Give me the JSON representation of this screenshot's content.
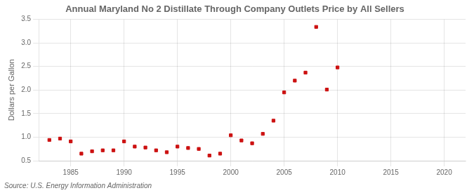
{
  "chart_data": {
    "type": "scatter",
    "title": "Annual Maryland No 2 Distillate Through Company Outlets Price by All Sellers",
    "ylabel": "Dollars per Gallon",
    "source": "Source: U.S. Energy Information Administration",
    "x": [
      1983,
      1984,
      1985,
      1986,
      1987,
      1988,
      1989,
      1990,
      1991,
      1992,
      1993,
      1994,
      1995,
      1996,
      1997,
      1998,
      1999,
      2000,
      2001,
      2002,
      2003,
      2004,
      2005,
      2006,
      2007,
      2008,
      2009,
      2010
    ],
    "values": [
      0.94,
      0.97,
      0.91,
      0.65,
      0.7,
      0.72,
      0.72,
      0.91,
      0.8,
      0.78,
      0.72,
      0.68,
      0.8,
      0.77,
      0.75,
      0.61,
      0.65,
      1.04,
      0.93,
      0.87,
      1.07,
      1.35,
      1.95,
      2.2,
      2.37,
      3.34,
      2.01,
      2.48
    ],
    "color": "#cc1111",
    "marker": "square",
    "xlim": [
      1982,
      2022
    ],
    "xticks": [
      1985,
      1990,
      1995,
      2000,
      2005,
      2010,
      2015,
      2020
    ],
    "ylim": [
      0.5,
      3.5
    ],
    "yticks": [
      0.5,
      {
        "value": 1.0,
        "label": "1.0"
      },
      1.5,
      {
        "value": 2.0,
        "label": "2.0"
      },
      2.5,
      {
        "value": 3.0,
        "label": "3.0"
      },
      3.5
    ],
    "grid": true
  }
}
